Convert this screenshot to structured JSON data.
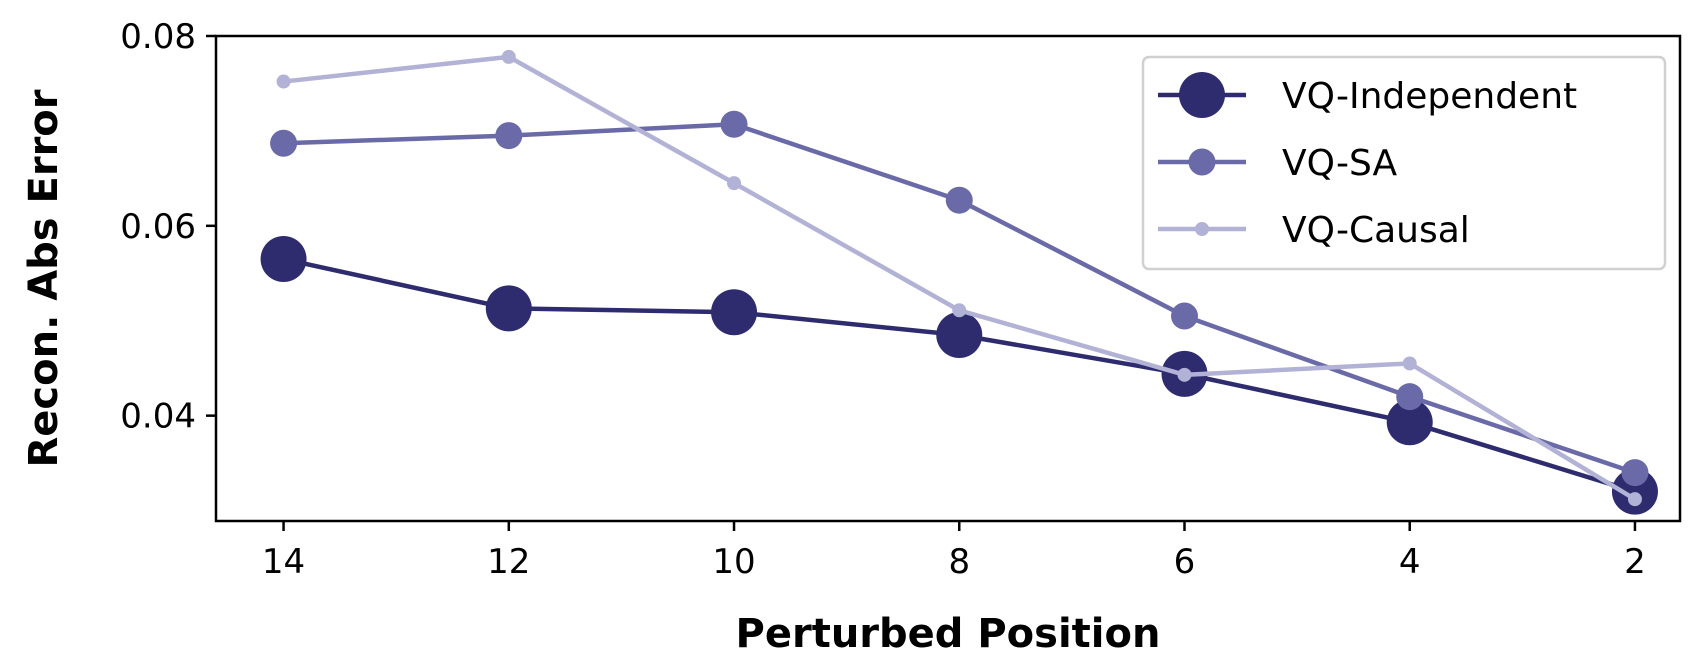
{
  "chart_data": {
    "type": "line",
    "title": "",
    "xlabel": "Perturbed Position",
    "ylabel": "Recon. Abs Error",
    "x": [
      14,
      12,
      10,
      8,
      6,
      4,
      2
    ],
    "x_reversed": true,
    "xlim": [
      14.6,
      1.6
    ],
    "ylim": [
      0.0289,
      0.08
    ],
    "xticks": [
      "14",
      "12",
      "10",
      "8",
      "6",
      "4",
      "2"
    ],
    "yticks": [
      {
        "value": 0.04,
        "label": "0.04"
      },
      {
        "value": 0.06,
        "label": "0.06"
      },
      {
        "value": 0.08,
        "label": "0.08"
      }
    ],
    "grid": false,
    "legend_position": "top-right",
    "series": [
      {
        "name": "VQ-Independent",
        "color": "#2e2c6e",
        "marker": "large",
        "values": [
          0.0565,
          0.0513,
          0.0509,
          0.0485,
          0.0444,
          0.0393,
          0.032
        ]
      },
      {
        "name": "VQ-SA",
        "color": "#6b6aa8",
        "marker": "medium",
        "values": [
          0.0687,
          0.0695,
          0.0707,
          0.0627,
          0.0505,
          0.042,
          0.034
        ]
      },
      {
        "name": "VQ-Causal",
        "color": "#b2b1d6",
        "marker": "small",
        "values": [
          0.0752,
          0.0778,
          0.0645,
          0.0511,
          0.0443,
          0.0455,
          0.0312
        ]
      }
    ]
  }
}
